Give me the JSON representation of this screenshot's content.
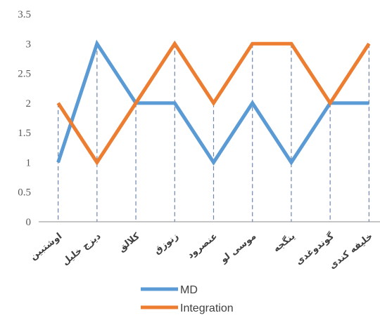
{
  "chart_data": {
    "type": "line",
    "categories": [
      "اوشتبین",
      "دیزج خلیل",
      "کلالق",
      "زنوزق",
      "عنصرود",
      "موسی لو",
      "ینگجه",
      "گوندوغدی",
      "خلیفه کندی"
    ],
    "series": [
      {
        "name": "MD",
        "values": [
          1,
          3,
          2,
          2,
          1,
          2,
          1,
          2,
          2
        ],
        "color": "#5B9BD5"
      },
      {
        "name": "Integration",
        "values": [
          2,
          1,
          2,
          3,
          2,
          3,
          3,
          2,
          3
        ],
        "color": "#ED7D31"
      }
    ],
    "yticks": [
      "0",
      "0.5",
      "1",
      "1.5",
      "2",
      "2.5",
      "3",
      "3.5"
    ],
    "ylim": [
      0,
      3.5
    ],
    "gridlines": "vertical dashed drop lines",
    "legend": "bottom"
  }
}
